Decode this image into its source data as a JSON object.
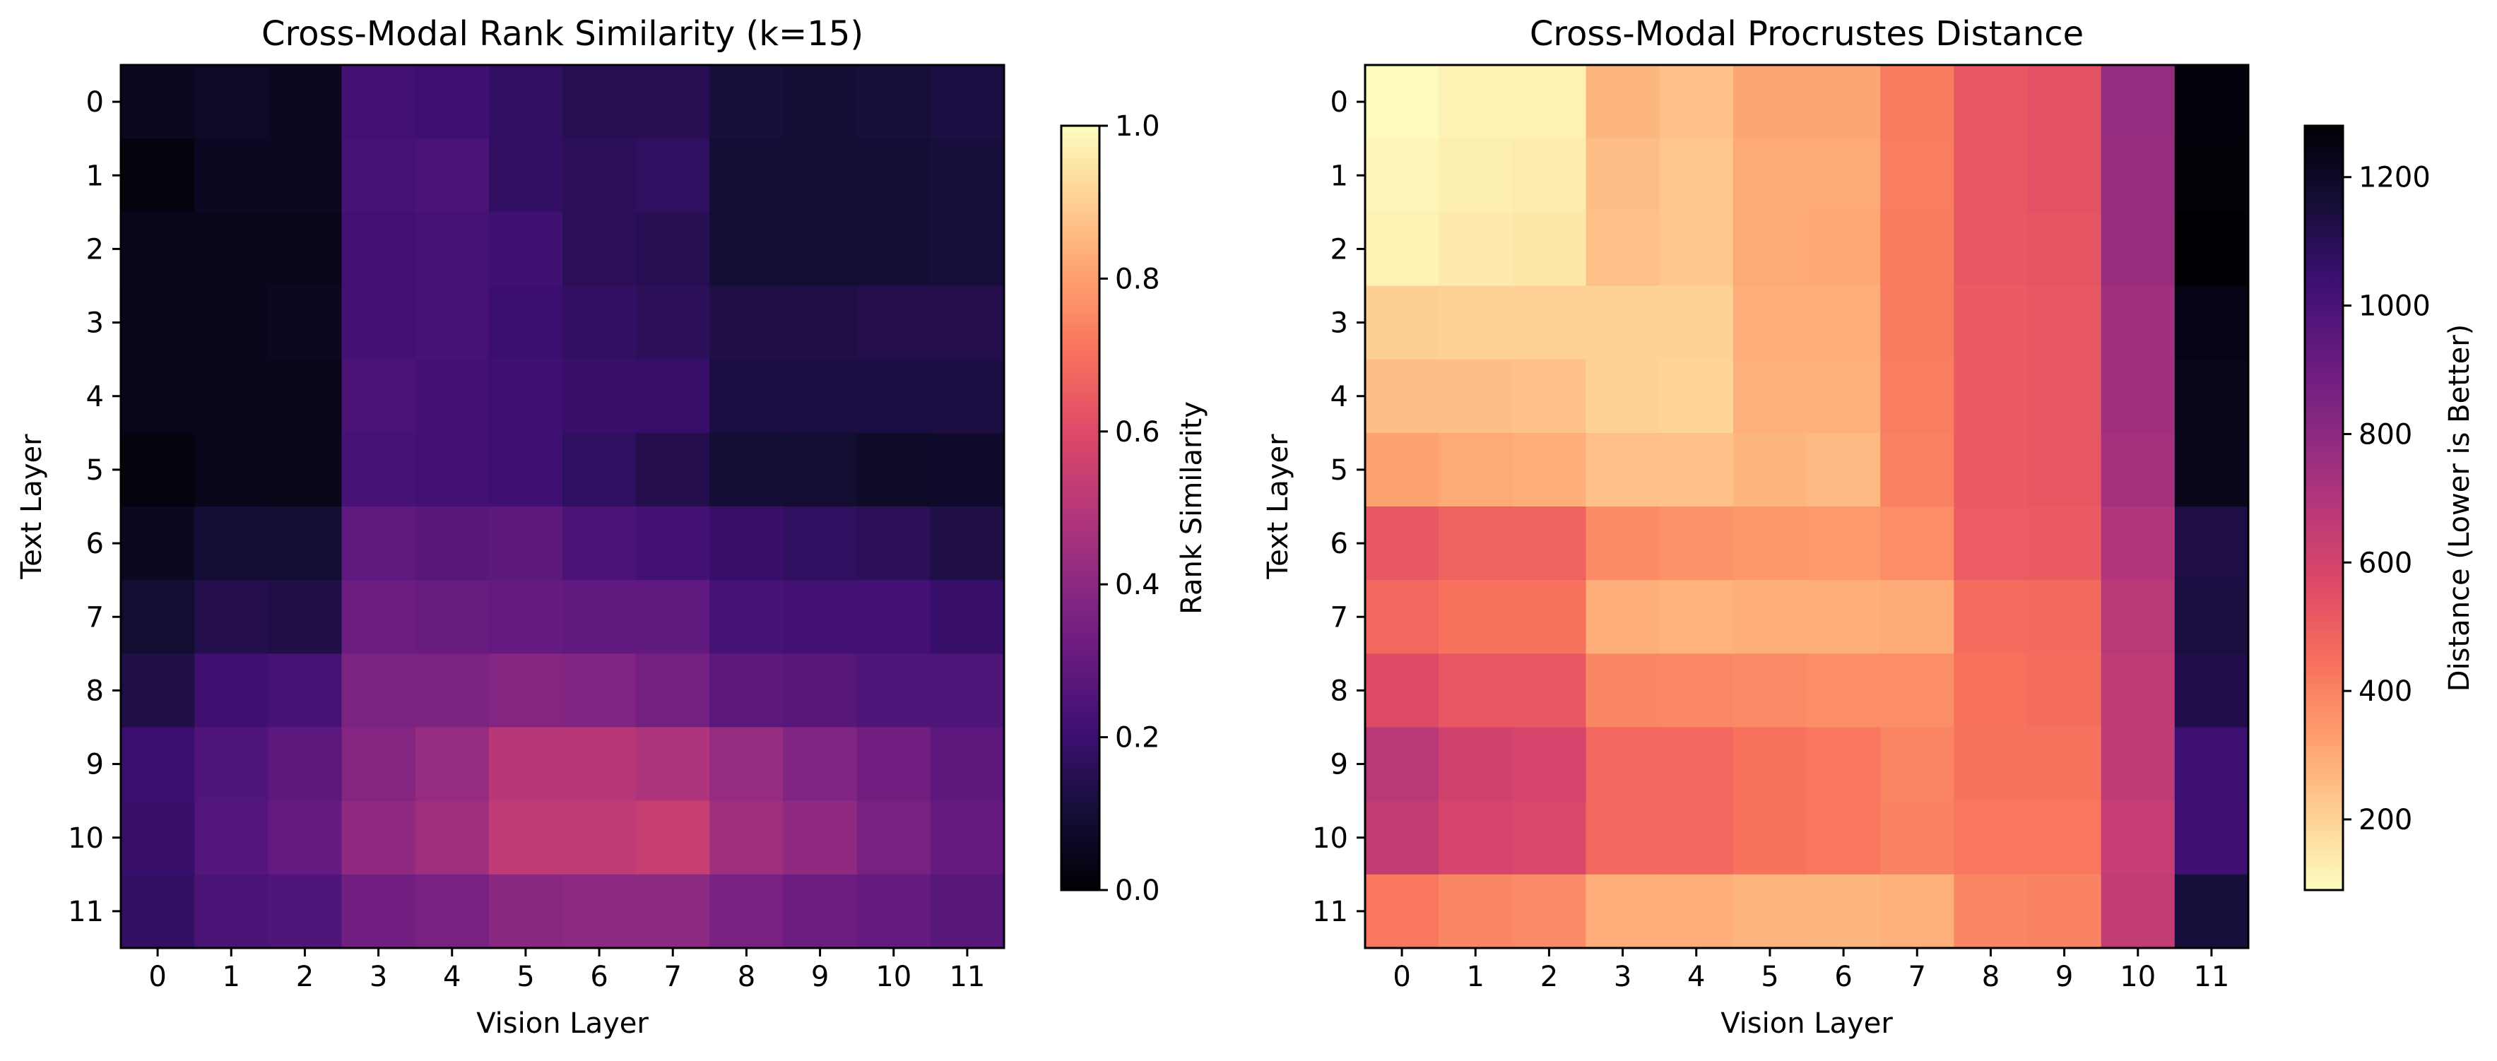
{
  "chart_data": [
    {
      "type": "heatmap",
      "title": "Cross-Modal Rank Similarity (k=15)",
      "xlabel": "Vision Layer",
      "ylabel": "Text Layer",
      "x_ticks": [
        "0",
        "1",
        "2",
        "3",
        "4",
        "5",
        "6",
        "7",
        "8",
        "9",
        "10",
        "11"
      ],
      "y_ticks": [
        "0",
        "1",
        "2",
        "3",
        "4",
        "5",
        "6",
        "7",
        "8",
        "9",
        "10",
        "11"
      ],
      "colormap": "magma",
      "colorbar": {
        "label": "Rank Similarity",
        "range": [
          0.0,
          1.0
        ],
        "ticks": [
          0.0,
          0.2,
          0.4,
          0.6,
          0.8,
          1.0
        ],
        "tick_labels": [
          "0.0",
          "0.2",
          "0.4",
          "0.6",
          "0.8",
          "1.0"
        ]
      },
      "values": [
        [
          0.06,
          0.07,
          0.06,
          0.22,
          0.21,
          0.18,
          0.15,
          0.15,
          0.11,
          0.1,
          0.11,
          0.12
        ],
        [
          0.02,
          0.06,
          0.06,
          0.23,
          0.24,
          0.18,
          0.16,
          0.17,
          0.1,
          0.09,
          0.1,
          0.11
        ],
        [
          0.05,
          0.05,
          0.05,
          0.22,
          0.23,
          0.21,
          0.16,
          0.15,
          0.1,
          0.09,
          0.1,
          0.11
        ],
        [
          0.04,
          0.05,
          0.06,
          0.22,
          0.23,
          0.2,
          0.18,
          0.16,
          0.13,
          0.13,
          0.14,
          0.14
        ],
        [
          0.04,
          0.04,
          0.05,
          0.24,
          0.22,
          0.21,
          0.19,
          0.19,
          0.12,
          0.12,
          0.12,
          0.12
        ],
        [
          0.02,
          0.04,
          0.04,
          0.23,
          0.22,
          0.21,
          0.17,
          0.14,
          0.1,
          0.09,
          0.07,
          0.08
        ],
        [
          0.06,
          0.1,
          0.09,
          0.29,
          0.27,
          0.28,
          0.24,
          0.22,
          0.19,
          0.17,
          0.16,
          0.13
        ],
        [
          0.09,
          0.14,
          0.13,
          0.32,
          0.31,
          0.3,
          0.29,
          0.29,
          0.23,
          0.22,
          0.22,
          0.19
        ],
        [
          0.13,
          0.21,
          0.23,
          0.36,
          0.36,
          0.38,
          0.37,
          0.34,
          0.28,
          0.27,
          0.25,
          0.25
        ],
        [
          0.2,
          0.25,
          0.28,
          0.38,
          0.42,
          0.5,
          0.5,
          0.48,
          0.42,
          0.37,
          0.33,
          0.28
        ],
        [
          0.19,
          0.26,
          0.3,
          0.41,
          0.44,
          0.52,
          0.52,
          0.54,
          0.44,
          0.41,
          0.35,
          0.3
        ],
        [
          0.18,
          0.24,
          0.25,
          0.33,
          0.35,
          0.39,
          0.4,
          0.4,
          0.35,
          0.32,
          0.3,
          0.27
        ]
      ]
    },
    {
      "type": "heatmap",
      "title": "Cross-Modal Procrustes Distance",
      "xlabel": "Vision Layer",
      "ylabel": "Text Layer",
      "x_ticks": [
        "0",
        "1",
        "2",
        "3",
        "4",
        "5",
        "6",
        "7",
        "8",
        "9",
        "10",
        "11"
      ],
      "y_ticks": [
        "0",
        "1",
        "2",
        "3",
        "4",
        "5",
        "6",
        "7",
        "8",
        "9",
        "10",
        "11"
      ],
      "colormap": "magma_r",
      "colorbar": {
        "label": "Distance (Lower is Better)",
        "range": [
          90,
          1280
        ],
        "ticks": [
          200,
          400,
          600,
          800,
          1000,
          1200
        ],
        "tick_labels": [
          "200",
          "400",
          "600",
          "800",
          "1000",
          "1200"
        ]
      },
      "values": [
        [
          95,
          120,
          120,
          270,
          240,
          310,
          310,
          420,
          520,
          540,
          780,
          1260
        ],
        [
          110,
          125,
          135,
          250,
          230,
          300,
          300,
          415,
          520,
          540,
          770,
          1270
        ],
        [
          120,
          140,
          145,
          245,
          230,
          300,
          305,
          420,
          520,
          530,
          770,
          1280
        ],
        [
          210,
          205,
          205,
          205,
          200,
          290,
          290,
          420,
          510,
          520,
          750,
          1240
        ],
        [
          250,
          250,
          240,
          200,
          195,
          285,
          285,
          415,
          510,
          520,
          750,
          1230
        ],
        [
          320,
          300,
          290,
          245,
          240,
          270,
          260,
          405,
          510,
          520,
          740,
          1220
        ],
        [
          520,
          490,
          490,
          375,
          360,
          345,
          340,
          370,
          505,
          510,
          700,
          1130
        ],
        [
          470,
          440,
          440,
          290,
          280,
          290,
          290,
          300,
          460,
          465,
          680,
          1140
        ],
        [
          560,
          520,
          520,
          390,
          385,
          380,
          370,
          370,
          445,
          455,
          660,
          1120
        ],
        [
          680,
          610,
          590,
          470,
          470,
          440,
          430,
          395,
          440,
          440,
          660,
          1040
        ],
        [
          650,
          590,
          580,
          470,
          470,
          440,
          430,
          400,
          430,
          430,
          640,
          1030
        ],
        [
          430,
          390,
          380,
          290,
          290,
          275,
          270,
          285,
          390,
          400,
          650,
          1150
        ]
      ]
    }
  ]
}
